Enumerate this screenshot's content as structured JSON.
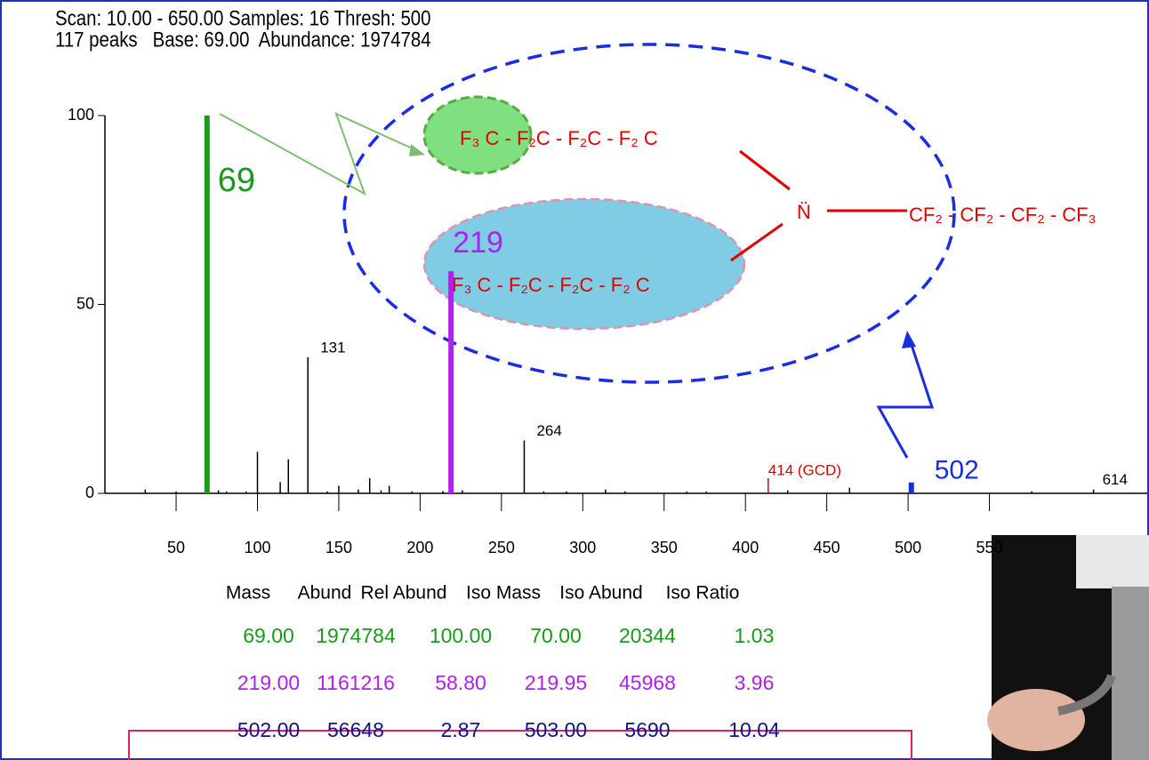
{
  "header": {
    "line1": "Scan: 10.00 - 650.00 Samples: 16 Thresh: 500",
    "line2": "117 peaks   Base: 69.00  Abundance: 1974784"
  },
  "chart_data": {
    "type": "spectrum",
    "xlim": [
      10,
      650
    ],
    "xticks": [
      50,
      100,
      150,
      200,
      250,
      300,
      350,
      400,
      450,
      500,
      550
    ],
    "ylim": [
      0,
      100
    ],
    "yticks": [
      0,
      50,
      100
    ],
    "series": [
      {
        "color": "#000000",
        "x": [
          31,
          50,
          76,
          81,
          93,
          100,
          114,
          119,
          131,
          143,
          150,
          162,
          169,
          176,
          181,
          195,
          214,
          226,
          264,
          276,
          290,
          314,
          326,
          364,
          376,
          426,
          464,
          576,
          614
        ],
        "values": [
          1,
          0.5,
          0.8,
          0.5,
          0.5,
          11,
          3,
          9,
          36,
          0.5,
          2,
          1,
          4,
          0.8,
          2,
          0.5,
          0.6,
          0.8,
          14,
          0.5,
          0.5,
          1,
          0.5,
          0.5,
          0.5,
          0.8,
          1.5,
          0.5,
          1
        ],
        "labels": [
          null,
          null,
          null,
          null,
          null,
          null,
          null,
          null,
          "131",
          null,
          null,
          null,
          null,
          null,
          null,
          null,
          null,
          null,
          "264",
          null,
          null,
          null,
          null,
          null,
          null,
          null,
          null,
          null,
          "614"
        ]
      },
      {
        "color": "#1a9a1a",
        "x": [
          69
        ],
        "values": [
          100
        ],
        "labels": [
          "69"
        ]
      },
      {
        "color": "#b020f0",
        "x": [
          219
        ],
        "values": [
          58.8
        ],
        "labels": [
          "219"
        ]
      },
      {
        "color": "#e00000",
        "x": [
          414
        ],
        "values": [
          4
        ],
        "labels": [
          "414 (GCD)"
        ]
      },
      {
        "color": "#1530e0",
        "x": [
          502
        ],
        "values": [
          2.87
        ],
        "labels": [
          "502"
        ]
      }
    ]
  },
  "structure": {
    "fragment_green": "F₃ C - F₂C - F₂C - F₂ C",
    "fragment_blue": "F₃ C - F₂C - F₂C - F₂ C",
    "nitrogen": "N̈",
    "chain": "CF₂ - CF₂ - CF₂ - CF₃"
  },
  "table": {
    "columns": [
      "Mass",
      "Abund",
      "Rel Abund",
      "Iso Mass",
      "Iso Abund",
      "Iso Ratio"
    ],
    "rows": [
      [
        "69.00",
        "1974784",
        "100.00",
        "70.00",
        "20344",
        "1.03"
      ],
      [
        "219.00",
        "1161216",
        "58.80",
        "219.95",
        "45968",
        "3.96"
      ],
      [
        "502.00",
        "56648",
        "2.87",
        "503.00",
        "5690",
        "10.04"
      ]
    ]
  }
}
